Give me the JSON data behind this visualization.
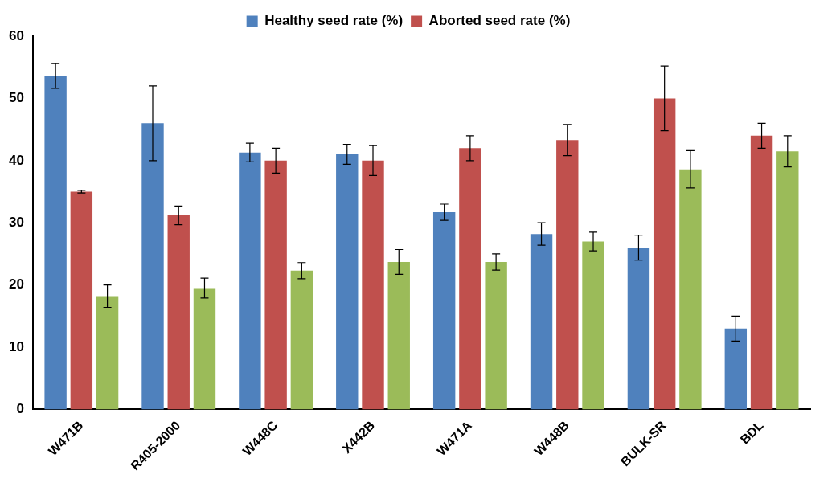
{
  "chart_data": {
    "type": "bar",
    "categories": [
      "W471B",
      "R405-2000",
      "W448C",
      "X442B",
      "W471A",
      "W448B",
      "BULK-SR",
      "BDL"
    ],
    "series": [
      {
        "name": "Healthy seed rate (%)",
        "color": "#4f81bd",
        "values": [
          53.6,
          46,
          41.3,
          41,
          31.7,
          28.2,
          26,
          13
        ],
        "errors": [
          2,
          6,
          1.5,
          1.6,
          1.3,
          1.8,
          2,
          2
        ]
      },
      {
        "name": "Aborted seed rate (%)",
        "color": "#c0504d",
        "values": [
          35,
          31.2,
          40,
          40,
          42,
          43.3,
          50,
          44
        ],
        "errors": [
          0.2,
          1.5,
          2,
          2.4,
          2,
          2.5,
          5.2,
          2
        ]
      },
      {
        "color": "#9bbb59",
        "values": [
          18.2,
          19.5,
          22.3,
          23.7,
          23.7,
          27,
          38.6,
          41.5
        ],
        "errors": [
          1.8,
          1.6,
          1.3,
          2,
          1.3,
          1.5,
          3,
          2.5
        ]
      }
    ],
    "ylim": [
      0,
      60
    ],
    "yticks": [
      0,
      10,
      20,
      30,
      40,
      50,
      60
    ],
    "grid": false,
    "legend": "top"
  }
}
